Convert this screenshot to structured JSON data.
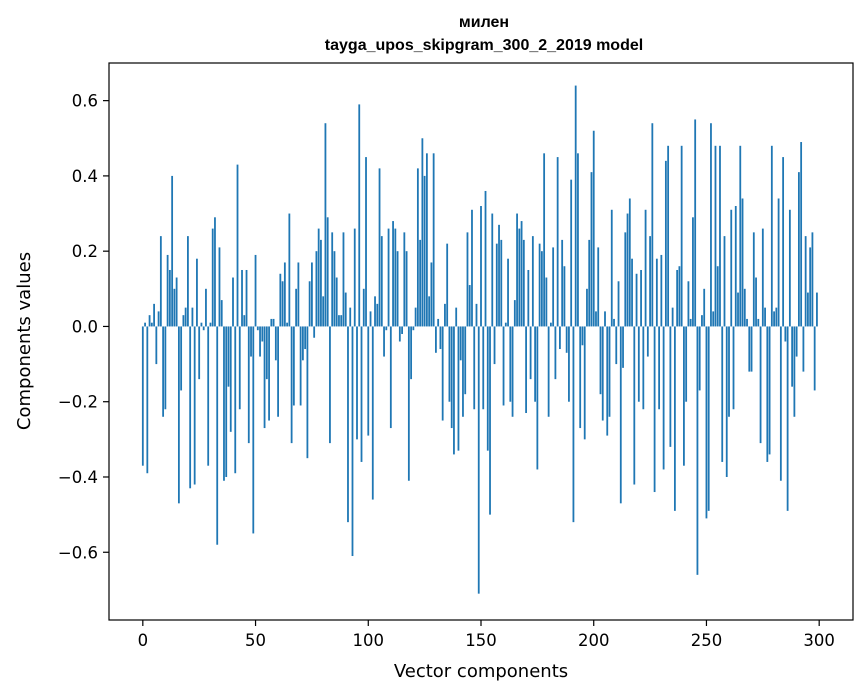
{
  "chart_data": {
    "type": "bar",
    "title_line1": "милен",
    "title_line2": "tayga_upos_skipgram_300_2_2019 model",
    "xlabel": "Vector components",
    "ylabel": "Components values",
    "xlim": [
      -15,
      315
    ],
    "ylim": [
      -0.78,
      0.7
    ],
    "xticks": [
      0,
      50,
      100,
      150,
      200,
      250,
      300
    ],
    "xtick_labels": [
      "0",
      "50",
      "100",
      "150",
      "200",
      "250",
      "300"
    ],
    "yticks": [
      -0.6,
      -0.4,
      -0.2,
      0.0,
      0.2,
      0.4,
      0.6
    ],
    "ytick_labels": [
      "−0.6",
      "−0.4",
      "−0.2",
      "0.0",
      "0.2",
      "0.4",
      "0.6"
    ],
    "bar_color": "#1f77b4",
    "values": [
      -0.37,
      0.01,
      -0.39,
      0.03,
      0.01,
      0.06,
      -0.1,
      0.04,
      0.24,
      -0.24,
      -0.22,
      0.19,
      0.15,
      0.4,
      0.1,
      0.13,
      -0.47,
      -0.17,
      0.03,
      0.05,
      0.24,
      -0.43,
      0.05,
      -0.42,
      0.18,
      -0.14,
      0.01,
      -0.01,
      0.1,
      -0.37,
      0.01,
      0.26,
      0.29,
      -0.58,
      0.21,
      0.07,
      -0.41,
      -0.4,
      -0.16,
      -0.28,
      0.13,
      -0.39,
      0.43,
      -0.22,
      0.15,
      0.03,
      0.15,
      -0.31,
      -0.08,
      -0.55,
      0.19,
      -0.01,
      -0.08,
      -0.04,
      -0.27,
      -0.14,
      -0.25,
      0.02,
      0.02,
      -0.09,
      -0.24,
      0.14,
      0.12,
      0.17,
      0.01,
      0.3,
      -0.31,
      -0.21,
      0.1,
      0.17,
      -0.21,
      -0.09,
      -0.06,
      -0.35,
      0.12,
      0.17,
      -0.03,
      0.2,
      0.26,
      0.23,
      0.08,
      0.54,
      0.29,
      -0.31,
      0.25,
      0.2,
      0.13,
      0.03,
      0.03,
      0.25,
      0.09,
      -0.52,
      0.05,
      -0.61,
      0.26,
      -0.3,
      0.59,
      -0.36,
      0.1,
      0.45,
      -0.29,
      0.04,
      -0.46,
      0.08,
      0.06,
      0.42,
      0.24,
      -0.08,
      -0.01,
      0.26,
      -0.27,
      0.28,
      0.26,
      0.2,
      -0.04,
      -0.02,
      0.25,
      0.2,
      -0.41,
      -0.14,
      -0.01,
      0.05,
      0.42,
      0.23,
      0.5,
      0.4,
      0.46,
      0.08,
      0.17,
      0.46,
      -0.07,
      0.02,
      -0.06,
      -0.25,
      0.06,
      0.22,
      -0.2,
      -0.27,
      -0.34,
      0.05,
      -0.33,
      -0.09,
      -0.24,
      -0.18,
      0.25,
      0.11,
      0.31,
      -0.22,
      0.06,
      -0.71,
      0.32,
      -0.22,
      0.36,
      -0.33,
      -0.5,
      0.3,
      -0.1,
      0.22,
      0.27,
      0.23,
      -0.21,
      0.01,
      0.18,
      -0.2,
      -0.24,
      0.07,
      0.3,
      0.26,
      0.28,
      0.23,
      -0.23,
      0.15,
      -0.14,
      0.24,
      -0.2,
      -0.38,
      0.22,
      0.2,
      0.46,
      0.13,
      -0.24,
      0.01,
      0.21,
      -0.14,
      0.45,
      -0.06,
      0.23,
      0.16,
      -0.07,
      -0.2,
      0.39,
      -0.52,
      0.64,
      0.46,
      -0.27,
      -0.05,
      -0.3,
      0.1,
      0.23,
      0.41,
      0.52,
      0.04,
      0.21,
      -0.18,
      -0.25,
      0.04,
      -0.29,
      -0.24,
      0.31,
      0.02,
      -0.1,
      0.12,
      -0.47,
      -0.11,
      0.25,
      0.3,
      0.34,
      0.18,
      -0.42,
      0.14,
      -0.2,
      0.15,
      -0.22,
      0.31,
      -0.08,
      0.24,
      0.54,
      -0.44,
      0.18,
      -0.22,
      0.19,
      -0.38,
      0.44,
      0.48,
      -0.32,
      0.05,
      -0.49,
      0.15,
      0.16,
      0.48,
      -0.37,
      -0.2,
      0.12,
      0.02,
      0.29,
      0.55,
      -0.66,
      -0.17,
      0.03,
      0.1,
      -0.51,
      -0.49,
      0.54,
      0.04,
      0.48,
      0.16,
      0.48,
      -0.36,
      0.24,
      -0.4,
      -0.24,
      0.31,
      -0.22,
      0.32,
      0.09,
      0.48,
      0.34,
      0.1,
      0.02,
      -0.12,
      -0.12,
      0.25,
      0.13,
      0.02,
      -0.31,
      0.26,
      0.05,
      -0.36,
      -0.34,
      0.48,
      0.04,
      0.05,
      0.34,
      -0.41,
      0.45,
      -0.04,
      -0.49,
      0.31,
      -0.16,
      -0.24,
      -0.08,
      0.41,
      0.49,
      -0.12,
      0.24,
      0.09,
      0.21,
      0.25,
      -0.17,
      0.09
    ]
  }
}
